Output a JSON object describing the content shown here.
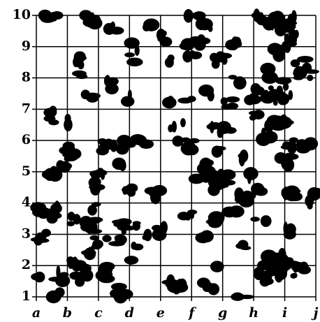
{
  "y_labels": [
    "1",
    "2",
    "3",
    "4",
    "5",
    "6",
    "7",
    "8",
    "9",
    "10"
  ],
  "x_labels": [
    "a",
    "b",
    "c",
    "d",
    "e",
    "f",
    "g",
    "h",
    "i",
    "j"
  ]
}
